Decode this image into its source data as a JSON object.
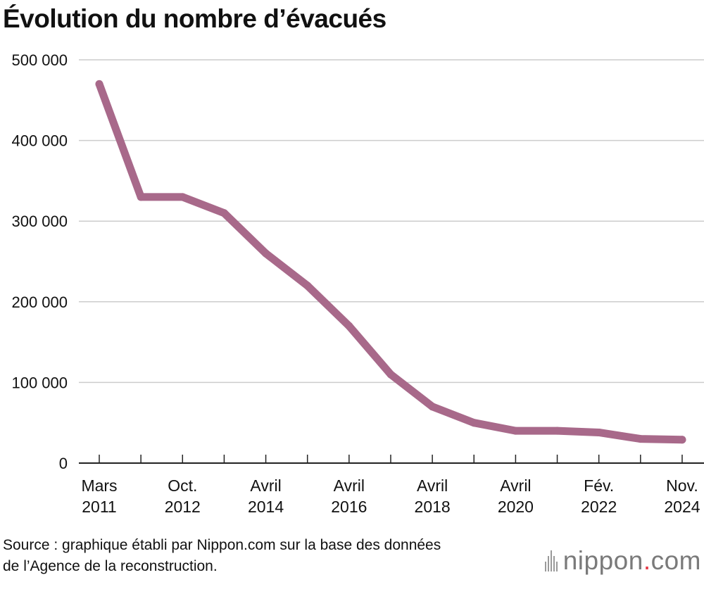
{
  "title": "Évolution du nombre d’évacués",
  "source": {
    "line1": "Source : graphique établi par Nippon.com sur la base des données",
    "line2": "de l’Agence de la reconstruction."
  },
  "logo": {
    "name": "nippon",
    "dot": ".",
    "suffix": "com",
    "mark_icon": "nippon-bars-icon"
  },
  "colors": {
    "series": "#a8698a",
    "grid": "#cccccc",
    "axis": "#222222",
    "text": "#111111",
    "logo_dot": "#e63946"
  },
  "chart_data": {
    "type": "line",
    "title": "Évolution du nombre d’évacués",
    "xlabel": "",
    "ylabel": "",
    "ylim": [
      0,
      500000
    ],
    "yticks": [
      0,
      100000,
      200000,
      300000,
      400000,
      500000
    ],
    "ytick_labels": [
      "0",
      "100 000",
      "200 000",
      "300 000",
      "400 000",
      "500 000"
    ],
    "grid": true,
    "x_labels": [
      {
        "index": 0,
        "line1": "Mars",
        "line2": "2011"
      },
      {
        "index": 2,
        "line1": "Oct.",
        "line2": "2012"
      },
      {
        "index": 4,
        "line1": "Avril",
        "line2": "2014"
      },
      {
        "index": 6,
        "line1": "Avril",
        "line2": "2016"
      },
      {
        "index": 8,
        "line1": "Avril",
        "line2": "2018"
      },
      {
        "index": 10,
        "line1": "Avril",
        "line2": "2020"
      },
      {
        "index": 12,
        "line1": "Fév.",
        "line2": "2022"
      },
      {
        "index": 14,
        "line1": "Nov.",
        "line2": "2024"
      }
    ],
    "series": [
      {
        "name": "Nombre d’évacués",
        "values": [
          470000,
          330000,
          330000,
          310000,
          260000,
          220000,
          170000,
          110000,
          70000,
          50000,
          40000,
          40000,
          38000,
          30000,
          29000
        ]
      }
    ]
  }
}
